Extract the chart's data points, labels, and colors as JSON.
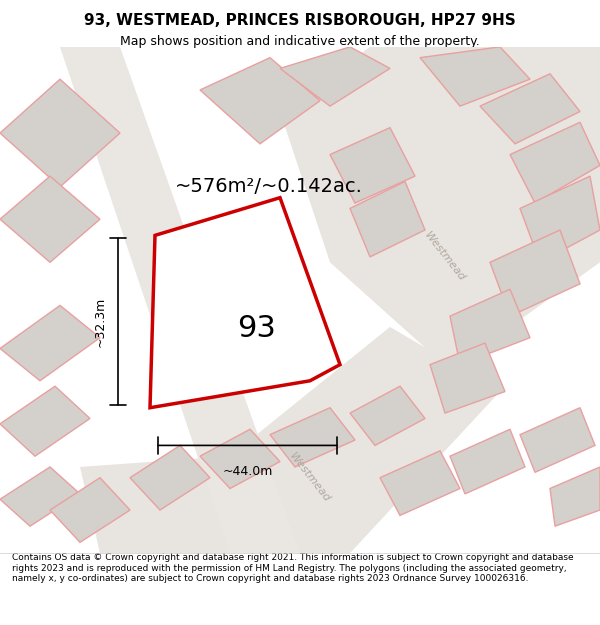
{
  "title": "93, WESTMEAD, PRINCES RISBOROUGH, HP27 9HS",
  "subtitle": "Map shows position and indicative extent of the property.",
  "footer": "Contains OS data © Crown copyright and database right 2021. This information is subject to Crown copyright and database rights 2023 and is reproduced with the permission of HM Land Registry. The polygons (including the associated geometry, namely x, y co-ordinates) are subject to Crown copyright and database rights 2023 Ordnance Survey 100026316.",
  "area_label": "~576m²/~0.142ac.",
  "width_label": "~44.0m",
  "height_label": "~32.3m",
  "property_number": "93",
  "bg_color": "#f5f3f0",
  "map_bg": "#f0ede8",
  "building_fill": "#d4d0cb",
  "road_color": "#ffffff",
  "plot_line_color": "#cc0000",
  "plot_fill_color": "#ffffff",
  "other_building_stroke": "#e8a0a0",
  "road_label_color": "#b0a0a0",
  "street_name": "Westmead",
  "dim_color": "#000000",
  "figsize": [
    6.0,
    6.25
  ],
  "dpi": 100,
  "title_fontsize": 11,
  "subtitle_fontsize": 9,
  "footer_fontsize": 6.5
}
